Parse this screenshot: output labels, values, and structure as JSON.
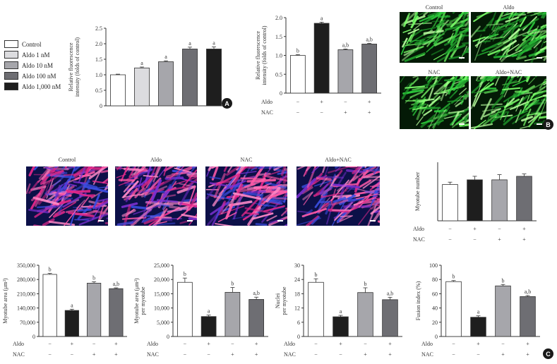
{
  "colors": {
    "control": "#ffffff",
    "aldo": "#1e1e1e",
    "nac": "#a6a6ab",
    "aldo_nac": "#6e6e73",
    "aldo_1nM": "#dcdcdf",
    "aldo_10nM": "#a6a6ab",
    "aldo_100nM": "#6e6e73",
    "aldo_1000nM": "#1e1e1e"
  },
  "panels": {
    "a": "A",
    "b": "B",
    "c": "C"
  },
  "legend": {
    "items": [
      {
        "label": "Control",
        "color": "#ffffff"
      },
      {
        "label": "Aldo 1 nM",
        "color": "#dcdcdf"
      },
      {
        "label": "Aldo 10 nM",
        "color": "#a6a6ab"
      },
      {
        "label": "Aldo 100 nM",
        "color": "#6e6e73"
      },
      {
        "label": "Aldo 1,000 nM",
        "color": "#1e1e1e"
      }
    ]
  },
  "micrographs_b": [
    {
      "label": "Control"
    },
    {
      "label": "Aldo"
    },
    {
      "label": "NAC"
    },
    {
      "label": "Aldo+NAC"
    }
  ],
  "micrographs_c": [
    {
      "label": "Control"
    },
    {
      "label": "Aldo"
    },
    {
      "label": "NAC"
    },
    {
      "label": "Aldo+NAC"
    }
  ],
  "chart_data": [
    {
      "id": "a-dose",
      "type": "bar",
      "ylabel": "Relative fluorescence intensity (folds of control)",
      "ylim": [
        0,
        2.5
      ],
      "yticks": [
        0,
        0.5,
        1.0,
        1.5,
        2.0,
        2.5
      ],
      "ytick_labels": [
        "0",
        "0.5",
        "1.0",
        "1.5",
        "2.0",
        "2.5"
      ],
      "categories": [
        "Control",
        "Aldo 1 nM",
        "Aldo 10 nM",
        "Aldo 100 nM",
        "Aldo 1,000 nM"
      ],
      "values": [
        1.0,
        1.22,
        1.42,
        1.83,
        1.83
      ],
      "errors": [
        0.02,
        0.03,
        0.03,
        0.06,
        0.07
      ],
      "annotations": [
        "",
        "a",
        "a",
        "a",
        "a"
      ],
      "colors": [
        "#ffffff",
        "#dcdcdf",
        "#a6a6ab",
        "#6e6e73",
        "#1e1e1e"
      ]
    },
    {
      "id": "b-ros",
      "type": "bar",
      "ylabel": "Relative fluorescence intensity (folds of control)",
      "ylim": [
        0,
        2.0
      ],
      "yticks": [
        0,
        0.5,
        1.0,
        1.5,
        2.0
      ],
      "ytick_labels": [
        "0",
        "0.5",
        "1.0",
        "1.5",
        "2.0"
      ],
      "values": [
        1.0,
        1.85,
        1.15,
        1.3
      ],
      "errors": [
        0.02,
        0.03,
        0.02,
        0.02
      ],
      "annotations": [
        "b",
        "a",
        "a,b",
        "a,b"
      ],
      "colors": [
        "#ffffff",
        "#1e1e1e",
        "#a6a6ab",
        "#6e6e73"
      ],
      "conditions": [
        {
          "name": "Aldo",
          "values": [
            "−",
            "+",
            "−",
            "+"
          ]
        },
        {
          "name": "NAC",
          "values": [
            "−",
            "−",
            "+",
            "+"
          ]
        }
      ]
    },
    {
      "id": "c-number",
      "type": "bar",
      "ylabel": "Myotube number",
      "ylim": [
        0,
        25
      ],
      "yticks": [],
      "ytick_labels": [],
      "values": [
        15.5,
        17.5,
        17.5,
        19.0
      ],
      "errors": [
        1.0,
        1.5,
        2.2,
        1.0
      ],
      "annotations": [
        "",
        "",
        "",
        ""
      ],
      "colors": [
        "#ffffff",
        "#1e1e1e",
        "#a6a6ab",
        "#6e6e73"
      ],
      "conditions": [
        {
          "name": "Aldo",
          "values": [
            "−",
            "+",
            "−",
            "+"
          ]
        },
        {
          "name": "NAC",
          "values": [
            "−",
            "−",
            "+",
            "+"
          ]
        }
      ]
    },
    {
      "id": "c-area",
      "type": "bar",
      "ylabel": "Myotube area (μm²)",
      "ylim": [
        0,
        350000
      ],
      "yticks": [
        0,
        70000,
        140000,
        210000,
        280000,
        350000
      ],
      "ytick_labels": [
        "0",
        "70,000",
        "140,000",
        "210,000",
        "280,000",
        "350,000"
      ],
      "values": [
        305000,
        128000,
        262000,
        235000
      ],
      "errors": [
        5000,
        6000,
        7000,
        4000
      ],
      "annotations": [
        "b",
        "a",
        "b",
        "a,b"
      ],
      "colors": [
        "#ffffff",
        "#1e1e1e",
        "#a6a6ab",
        "#6e6e73"
      ],
      "conditions": [
        {
          "name": "Aldo",
          "values": [
            "−",
            "+",
            "−",
            "+"
          ]
        },
        {
          "name": "NAC",
          "values": [
            "−",
            "−",
            "+",
            "+"
          ]
        }
      ]
    },
    {
      "id": "c-area-per",
      "type": "bar",
      "ylabel": "Myotube area (μm²) per myotube",
      "ylim": [
        0,
        25000
      ],
      "yticks": [
        0,
        5000,
        10000,
        15000,
        20000,
        25000
      ],
      "ytick_labels": [
        "0",
        "5,000",
        "10,000",
        "15,000",
        "20,000",
        "25,000"
      ],
      "values": [
        19000,
        7000,
        15500,
        13000
      ],
      "errors": [
        1500,
        500,
        1700,
        800
      ],
      "annotations": [
        "b",
        "a",
        "b",
        "a,b"
      ],
      "colors": [
        "#ffffff",
        "#1e1e1e",
        "#a6a6ab",
        "#6e6e73"
      ],
      "conditions": [
        {
          "name": "Aldo",
          "values": [
            "−",
            "+",
            "−",
            "+"
          ]
        },
        {
          "name": "NAC",
          "values": [
            "−",
            "−",
            "+",
            "+"
          ]
        }
      ]
    },
    {
      "id": "c-nuclei",
      "type": "bar",
      "ylabel": "Nuclei per myotube",
      "ylim": [
        0,
        30
      ],
      "yticks": [
        0,
        6,
        12,
        18,
        24,
        30
      ],
      "ytick_labels": [
        "0",
        "6",
        "12",
        "18",
        "24",
        "30"
      ],
      "values": [
        22.8,
        8.3,
        18.5,
        15.5
      ],
      "errors": [
        1.5,
        0.6,
        2.0,
        1.0
      ],
      "annotations": [
        "b",
        "a",
        "b",
        "a,b"
      ],
      "colors": [
        "#ffffff",
        "#1e1e1e",
        "#a6a6ab",
        "#6e6e73"
      ],
      "conditions": [
        {
          "name": "Aldo",
          "values": [
            "−",
            "+",
            "−",
            "+"
          ]
        },
        {
          "name": "NAC",
          "values": [
            "−",
            "−",
            "+",
            "+"
          ]
        }
      ]
    },
    {
      "id": "c-fusion",
      "type": "bar",
      "ylabel": "Fusion index (%)",
      "ylim": [
        0,
        100
      ],
      "yticks": [
        0,
        20,
        40,
        60,
        80,
        100
      ],
      "ytick_labels": [
        "0",
        "20",
        "40",
        "60",
        "80",
        "100"
      ],
      "values": [
        77,
        27,
        71,
        56
      ],
      "errors": [
        1.5,
        2.0,
        2.0,
        1.5
      ],
      "annotations": [
        "b",
        "a",
        "b",
        "a,b"
      ],
      "colors": [
        "#ffffff",
        "#1e1e1e",
        "#a6a6ab",
        "#6e6e73"
      ],
      "conditions": [
        {
          "name": "Aldo",
          "values": [
            "−",
            "+",
            "−",
            "+"
          ]
        },
        {
          "name": "NAC",
          "values": [
            "−",
            "−",
            "+",
            "+"
          ]
        }
      ]
    }
  ]
}
